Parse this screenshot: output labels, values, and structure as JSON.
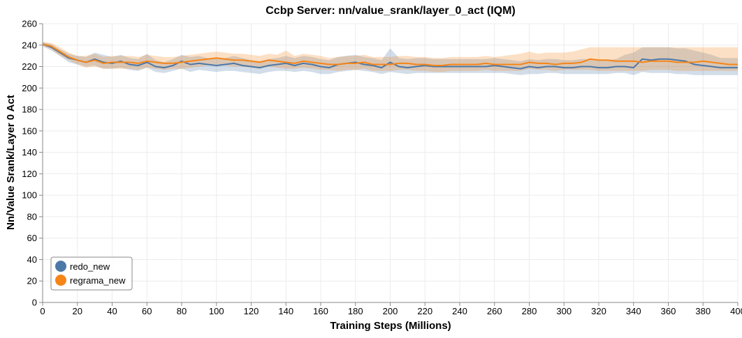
{
  "chart_data": {
    "type": "line",
    "title": "Ccbp Server: nn/value_srank/layer_0_act (IQM)",
    "xlabel": "Training Steps (Millions)",
    "ylabel": "Nn/Value Srank/Layer 0 Act",
    "xlim": [
      0,
      400
    ],
    "ylim": [
      0,
      260
    ],
    "x_ticks": [
      0,
      20,
      40,
      60,
      80,
      100,
      120,
      140,
      160,
      180,
      200,
      220,
      240,
      260,
      280,
      300,
      320,
      340,
      360,
      380,
      400
    ],
    "y_ticks": [
      0,
      20,
      40,
      60,
      80,
      100,
      120,
      140,
      160,
      180,
      200,
      220,
      240,
      260
    ],
    "grid": true,
    "legend_position": "bottom-left",
    "series": [
      {
        "name": "redo_new",
        "color": "#4c78a8",
        "x": [
          0,
          5,
          10,
          15,
          20,
          25,
          30,
          35,
          40,
          45,
          50,
          55,
          60,
          65,
          70,
          75,
          80,
          85,
          90,
          95,
          100,
          105,
          110,
          115,
          120,
          125,
          130,
          135,
          140,
          145,
          150,
          155,
          160,
          165,
          170,
          175,
          180,
          185,
          190,
          195,
          200,
          205,
          210,
          215,
          220,
          225,
          230,
          235,
          240,
          245,
          250,
          255,
          260,
          265,
          270,
          275,
          280,
          285,
          290,
          295,
          300,
          305,
          310,
          315,
          320,
          325,
          330,
          335,
          340,
          345,
          350,
          355,
          360,
          365,
          370,
          375,
          380,
          385,
          390,
          395,
          400
        ],
        "y": [
          241,
          238,
          233,
          228,
          226,
          224,
          227,
          224,
          223,
          225,
          222,
          221,
          224,
          220,
          219,
          221,
          225,
          222,
          223,
          222,
          221,
          222,
          223,
          221,
          220,
          219,
          221,
          222,
          223,
          221,
          223,
          222,
          220,
          219,
          222,
          223,
          224,
          222,
          221,
          219,
          224,
          220,
          219,
          220,
          221,
          220,
          220,
          220,
          220,
          220,
          220,
          220,
          221,
          220,
          219,
          218,
          220,
          219,
          220,
          220,
          219,
          219,
          220,
          220,
          219,
          219,
          220,
          220,
          219,
          227,
          226,
          227,
          227,
          226,
          225,
          222,
          221,
          220,
          219,
          219,
          219
        ],
        "lower": [
          239,
          235,
          230,
          224,
          222,
          220,
          221,
          218,
          218,
          219,
          217,
          216,
          219,
          215,
          214,
          216,
          218,
          215,
          217,
          216,
          215,
          216,
          216,
          215,
          214,
          213,
          215,
          216,
          216,
          215,
          216,
          215,
          213,
          213,
          215,
          216,
          217,
          216,
          215,
          213,
          215,
          214,
          213,
          214,
          214,
          214,
          214,
          214,
          214,
          214,
          214,
          214,
          214,
          214,
          213,
          212,
          213,
          213,
          214,
          214,
          213,
          213,
          213,
          213,
          213,
          213,
          214,
          214,
          212,
          215,
          214,
          214,
          214,
          213,
          213,
          212,
          212,
          212,
          212,
          212,
          212
        ],
        "upper": [
          243,
          241,
          236,
          232,
          230,
          229,
          233,
          231,
          229,
          231,
          228,
          227,
          232,
          226,
          224,
          227,
          231,
          229,
          230,
          228,
          227,
          228,
          230,
          228,
          226,
          225,
          227,
          228,
          230,
          228,
          230,
          229,
          227,
          226,
          229,
          230,
          231,
          229,
          228,
          226,
          237,
          228,
          227,
          228,
          228,
          227,
          227,
          227,
          227,
          227,
          227,
          227,
          228,
          227,
          226,
          225,
          227,
          226,
          227,
          227,
          226,
          226,
          227,
          227,
          226,
          226,
          227,
          231,
          233,
          238,
          238,
          238,
          238,
          237,
          237,
          235,
          233,
          231,
          228,
          228,
          228
        ]
      },
      {
        "name": "regrama_new",
        "color": "#f58518",
        "x": [
          0,
          5,
          10,
          15,
          20,
          25,
          30,
          35,
          40,
          45,
          50,
          55,
          60,
          65,
          70,
          75,
          80,
          85,
          90,
          95,
          100,
          105,
          110,
          115,
          120,
          125,
          130,
          135,
          140,
          145,
          150,
          155,
          160,
          165,
          170,
          175,
          180,
          185,
          190,
          195,
          200,
          205,
          210,
          215,
          220,
          225,
          230,
          235,
          240,
          245,
          250,
          255,
          260,
          265,
          270,
          275,
          280,
          285,
          290,
          295,
          300,
          305,
          310,
          315,
          320,
          325,
          330,
          335,
          340,
          345,
          350,
          355,
          360,
          365,
          370,
          375,
          380,
          385,
          390,
          395,
          400
        ],
        "y": [
          241,
          239,
          234,
          229,
          226,
          224,
          226,
          223,
          224,
          224,
          224,
          223,
          225,
          224,
          223,
          223,
          224,
          225,
          226,
          227,
          228,
          227,
          226,
          226,
          225,
          224,
          226,
          225,
          224,
          223,
          225,
          224,
          223,
          222,
          222,
          223,
          223,
          224,
          222,
          222,
          222,
          223,
          223,
          222,
          222,
          221,
          221,
          222,
          222,
          222,
          222,
          223,
          222,
          222,
          222,
          222,
          224,
          223,
          223,
          222,
          223,
          223,
          224,
          227,
          226,
          226,
          225,
          225,
          225,
          224,
          225,
          225,
          225,
          224,
          224,
          224,
          225,
          224,
          223,
          222,
          222
        ],
        "lower": [
          239,
          236,
          230,
          226,
          222,
          219,
          220,
          218,
          218,
          218,
          218,
          217,
          219,
          218,
          217,
          218,
          218,
          219,
          220,
          221,
          222,
          221,
          220,
          220,
          219,
          218,
          220,
          219,
          218,
          218,
          219,
          218,
          217,
          217,
          216,
          217,
          217,
          218,
          216,
          216,
          216,
          217,
          217,
          216,
          216,
          215,
          215,
          216,
          216,
          216,
          216,
          217,
          216,
          216,
          216,
          216,
          218,
          217,
          217,
          216,
          217,
          217,
          217,
          217,
          216,
          216,
          216,
          216,
          216,
          216,
          217,
          217,
          217,
          216,
          216,
          216,
          216,
          216,
          216,
          216,
          216
        ],
        "upper": [
          243,
          242,
          238,
          233,
          230,
          230,
          232,
          229,
          230,
          230,
          230,
          229,
          231,
          230,
          229,
          229,
          230,
          231,
          232,
          233,
          234,
          233,
          232,
          232,
          231,
          230,
          232,
          231,
          235,
          230,
          232,
          231,
          230,
          228,
          229,
          230,
          230,
          231,
          229,
          229,
          229,
          230,
          230,
          229,
          229,
          228,
          228,
          229,
          229,
          229,
          229,
          230,
          229,
          230,
          231,
          232,
          234,
          232,
          233,
          233,
          233,
          234,
          236,
          238,
          238,
          238,
          238,
          238,
          238,
          238,
          238,
          238,
          238,
          238,
          238,
          238,
          238,
          238,
          238,
          238,
          238
        ]
      }
    ]
  }
}
